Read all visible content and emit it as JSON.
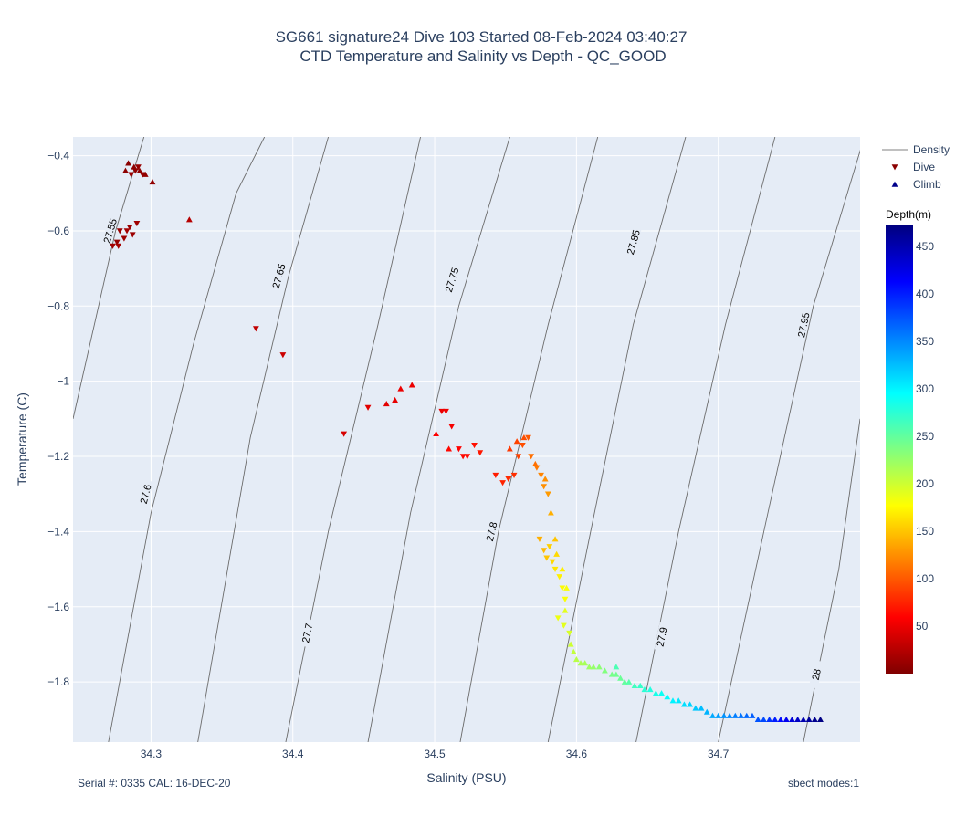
{
  "chart_data": {
    "type": "scatter",
    "title_line1": "SG661 signature24 Dive 103 Started 08-Feb-2024 03:40:27",
    "title_line2": "CTD Temperature and Salinity vs Depth - QC_GOOD",
    "xlabel": "Salinity (PSU)",
    "ylabel": "Temperature (C)",
    "xlim": [
      34.245,
      34.8
    ],
    "ylim": [
      -1.96,
      -0.35
    ],
    "xticks": [
      34.3,
      34.4,
      34.5,
      34.6,
      34.7
    ],
    "xtick_labels": [
      "34.3",
      "34.4",
      "34.5",
      "34.6",
      "34.7"
    ],
    "yticks": [
      -0.4,
      -0.6,
      -0.8,
      -1.0,
      -1.2,
      -1.4,
      -1.6,
      -1.8
    ],
    "ytick_labels": [
      "−0.4",
      "−0.6",
      "−0.8",
      "−1",
      "−1.2",
      "−1.4",
      "−1.6",
      "−1.8"
    ],
    "grid": true,
    "legend": {
      "placement": "top-right",
      "items": [
        {
          "name": "Density",
          "symbol": "line",
          "color": "#808080"
        },
        {
          "name": "Dive",
          "symbol": "triangle-down",
          "color": "#8b0000"
        },
        {
          "name": "Climb",
          "symbol": "triangle-up",
          "color": "#00008b"
        }
      ]
    },
    "colorbar": {
      "title": "Depth(m)",
      "range": [
        0,
        472
      ],
      "ticks": [
        50,
        100,
        150,
        200,
        250,
        300,
        350,
        400,
        450
      ],
      "tick_labels": [
        "50",
        "100",
        "150",
        "200",
        "250",
        "300",
        "350",
        "400",
        "450"
      ],
      "colorscale": [
        "#800000",
        "#ff0000",
        "#ff8000",
        "#ffff00",
        "#80ff80",
        "#00ffff",
        "#0080ff",
        "#0000ff",
        "#000080"
      ]
    },
    "density_contours": [
      {
        "label": "27.55",
        "points": [
          [
            34.245,
            -1.1
          ],
          [
            34.275,
            -0.6
          ],
          [
            34.295,
            -0.35
          ]
        ],
        "label_at": [
          34.271,
          -0.6
        ]
      },
      {
        "label": "27.6",
        "points": [
          [
            34.27,
            -1.96
          ],
          [
            34.3,
            -1.35
          ],
          [
            34.33,
            -0.9
          ],
          [
            34.36,
            -0.5
          ],
          [
            34.38,
            -0.35
          ]
        ],
        "label_at": [
          34.296,
          -1.3
        ]
      },
      {
        "label": "27.65",
        "points": [
          [
            34.333,
            -1.96
          ],
          [
            34.37,
            -1.15
          ],
          [
            34.397,
            -0.72
          ],
          [
            34.425,
            -0.35
          ]
        ],
        "label_at": [
          34.39,
          -0.72
        ]
      },
      {
        "label": "27.7",
        "points": [
          [
            34.395,
            -1.96
          ],
          [
            34.425,
            -1.4
          ],
          [
            34.46,
            -0.85
          ],
          [
            34.49,
            -0.35
          ]
        ],
        "label_at": [
          34.41,
          -1.67
        ]
      },
      {
        "label": "27.75",
        "points": [
          [
            34.453,
            -1.96
          ],
          [
            34.483,
            -1.35
          ],
          [
            34.517,
            -0.8
          ],
          [
            34.553,
            -0.35
          ]
        ],
        "label_at": [
          34.512,
          -0.73
        ]
      },
      {
        "label": "27.8",
        "points": [
          [
            34.518,
            -1.96
          ],
          [
            34.545,
            -1.4
          ],
          [
            34.58,
            -0.85
          ],
          [
            34.615,
            -0.35
          ]
        ],
        "label_at": [
          34.54,
          -1.4
        ]
      },
      {
        "label": "27.85",
        "points": [
          [
            34.58,
            -1.96
          ],
          [
            34.61,
            -1.4
          ],
          [
            34.64,
            -0.85
          ],
          [
            34.677,
            -0.35
          ]
        ],
        "label_at": [
          34.64,
          -0.63
        ]
      },
      {
        "label": "27.9",
        "points": [
          [
            34.642,
            -1.96
          ],
          [
            34.672,
            -1.4
          ],
          [
            34.705,
            -0.85
          ],
          [
            34.74,
            -0.35
          ]
        ],
        "label_at": [
          34.66,
          -1.68
        ]
      },
      {
        "label": "27.95",
        "points": [
          [
            34.7,
            -1.96
          ],
          [
            34.735,
            -1.35
          ],
          [
            34.767,
            -0.8
          ],
          [
            34.803,
            -0.35
          ]
        ],
        "label_at": [
          34.76,
          -0.85
        ]
      },
      {
        "label": "28",
        "points": [
          [
            34.76,
            -1.96
          ],
          [
            34.785,
            -1.5
          ],
          [
            34.8,
            -1.1
          ]
        ],
        "label_at": [
          34.769,
          -1.78
        ]
      }
    ],
    "series": [
      {
        "name": "Dive",
        "marker": "triangle-down",
        "points": [
          [
            34.276,
            -0.63,
            10
          ],
          [
            34.278,
            -0.6,
            12
          ],
          [
            34.281,
            -0.62,
            14
          ],
          [
            34.285,
            -0.59,
            11
          ],
          [
            34.287,
            -0.61,
            13
          ],
          [
            34.273,
            -0.64,
            16
          ],
          [
            34.277,
            -0.64,
            18
          ],
          [
            34.29,
            -0.58,
            15
          ],
          [
            34.283,
            -0.6,
            17
          ],
          [
            34.289,
            -0.44,
            9
          ],
          [
            34.294,
            -0.45,
            10
          ],
          [
            34.286,
            -0.45,
            12
          ],
          [
            34.291,
            -0.43,
            11
          ],
          [
            34.374,
            -0.86,
            30
          ],
          [
            34.393,
            -0.93,
            35
          ],
          [
            34.436,
            -1.14,
            40
          ],
          [
            34.453,
            -1.07,
            45
          ],
          [
            34.505,
            -1.08,
            50
          ],
          [
            34.508,
            -1.08,
            52
          ],
          [
            34.512,
            -1.12,
            55
          ],
          [
            34.517,
            -1.18,
            60
          ],
          [
            34.52,
            -1.2,
            62
          ],
          [
            34.523,
            -1.2,
            64
          ],
          [
            34.528,
            -1.17,
            66
          ],
          [
            34.532,
            -1.19,
            70
          ],
          [
            34.543,
            -1.25,
            72
          ],
          [
            34.548,
            -1.27,
            75
          ],
          [
            34.552,
            -1.26,
            78
          ],
          [
            34.556,
            -1.25,
            80
          ],
          [
            34.559,
            -1.2,
            90
          ],
          [
            34.562,
            -1.17,
            95
          ],
          [
            34.566,
            -1.15,
            100
          ],
          [
            34.568,
            -1.2,
            110
          ],
          [
            34.572,
            -1.23,
            115
          ],
          [
            34.575,
            -1.25,
            120
          ],
          [
            34.577,
            -1.28,
            125
          ],
          [
            34.58,
            -1.3,
            130
          ],
          [
            34.574,
            -1.42,
            140
          ],
          [
            34.577,
            -1.45,
            145
          ],
          [
            34.579,
            -1.47,
            150
          ],
          [
            34.581,
            -1.44,
            155
          ],
          [
            34.583,
            -1.48,
            160
          ],
          [
            34.585,
            -1.5,
            165
          ],
          [
            34.588,
            -1.52,
            170
          ],
          [
            34.59,
            -1.55,
            175
          ],
          [
            34.592,
            -1.58,
            180
          ],
          [
            34.587,
            -1.63,
            185
          ],
          [
            34.591,
            -1.65,
            190
          ],
          [
            34.595,
            -1.67,
            195
          ]
        ]
      },
      {
        "name": "Climb",
        "marker": "triangle-up",
        "points": [
          [
            34.284,
            -0.42,
            5
          ],
          [
            34.282,
            -0.44,
            6
          ],
          [
            34.288,
            -0.43,
            7
          ],
          [
            34.292,
            -0.44,
            6
          ],
          [
            34.296,
            -0.45,
            8
          ],
          [
            34.301,
            -0.47,
            8
          ],
          [
            34.327,
            -0.57,
            25
          ],
          [
            34.472,
            -1.05,
            48
          ],
          [
            34.484,
            -1.01,
            50
          ],
          [
            34.476,
            -1.02,
            50
          ],
          [
            34.466,
            -1.06,
            46
          ],
          [
            34.501,
            -1.14,
            58
          ],
          [
            34.51,
            -1.18,
            62
          ],
          [
            34.553,
            -1.18,
            85
          ],
          [
            34.558,
            -1.16,
            90
          ],
          [
            34.563,
            -1.15,
            95
          ],
          [
            34.571,
            -1.22,
            110
          ],
          [
            34.578,
            -1.26,
            125
          ],
          [
            34.582,
            -1.35,
            140
          ],
          [
            34.585,
            -1.42,
            150
          ],
          [
            34.586,
            -1.46,
            160
          ],
          [
            34.59,
            -1.5,
            170
          ],
          [
            34.593,
            -1.55,
            180
          ],
          [
            34.592,
            -1.61,
            190
          ],
          [
            34.596,
            -1.7,
            200
          ],
          [
            34.598,
            -1.72,
            205
          ],
          [
            34.6,
            -1.74,
            210
          ],
          [
            34.603,
            -1.75,
            215
          ],
          [
            34.606,
            -1.75,
            218
          ],
          [
            34.609,
            -1.76,
            222
          ],
          [
            34.612,
            -1.76,
            226
          ],
          [
            34.616,
            -1.76,
            230
          ],
          [
            34.62,
            -1.77,
            235
          ],
          [
            34.625,
            -1.78,
            240
          ],
          [
            34.628,
            -1.78,
            243
          ],
          [
            34.631,
            -1.79,
            246
          ],
          [
            34.634,
            -1.8,
            250
          ],
          [
            34.637,
            -1.8,
            255
          ],
          [
            34.628,
            -1.76,
            260
          ],
          [
            34.641,
            -1.81,
            265
          ],
          [
            34.645,
            -1.81,
            270
          ],
          [
            34.648,
            -1.82,
            275
          ],
          [
            34.652,
            -1.82,
            280
          ],
          [
            34.656,
            -1.83,
            285
          ],
          [
            34.66,
            -1.83,
            290
          ],
          [
            34.664,
            -1.84,
            295
          ],
          [
            34.668,
            -1.85,
            300
          ],
          [
            34.672,
            -1.85,
            305
          ],
          [
            34.676,
            -1.86,
            310
          ],
          [
            34.68,
            -1.86,
            315
          ],
          [
            34.684,
            -1.87,
            320
          ],
          [
            34.688,
            -1.87,
            325
          ],
          [
            34.692,
            -1.88,
            330
          ],
          [
            34.696,
            -1.89,
            335
          ],
          [
            34.7,
            -1.89,
            340
          ],
          [
            34.704,
            -1.89,
            345
          ],
          [
            34.708,
            -1.89,
            350
          ],
          [
            34.712,
            -1.89,
            355
          ],
          [
            34.716,
            -1.89,
            360
          ],
          [
            34.72,
            -1.89,
            365
          ],
          [
            34.724,
            -1.89,
            370
          ],
          [
            34.728,
            -1.9,
            375
          ],
          [
            34.732,
            -1.9,
            380
          ],
          [
            34.736,
            -1.9,
            390
          ],
          [
            34.74,
            -1.9,
            400
          ],
          [
            34.744,
            -1.9,
            410
          ],
          [
            34.748,
            -1.9,
            420
          ],
          [
            34.752,
            -1.9,
            430
          ],
          [
            34.756,
            -1.9,
            440
          ],
          [
            34.76,
            -1.9,
            450
          ],
          [
            34.764,
            -1.9,
            458
          ],
          [
            34.768,
            -1.9,
            465
          ],
          [
            34.772,
            -1.9,
            470
          ]
        ]
      }
    ]
  },
  "footer": {
    "left": "Serial #: 0335  CAL: 16-DEC-20",
    "right": "sbect modes:1"
  }
}
